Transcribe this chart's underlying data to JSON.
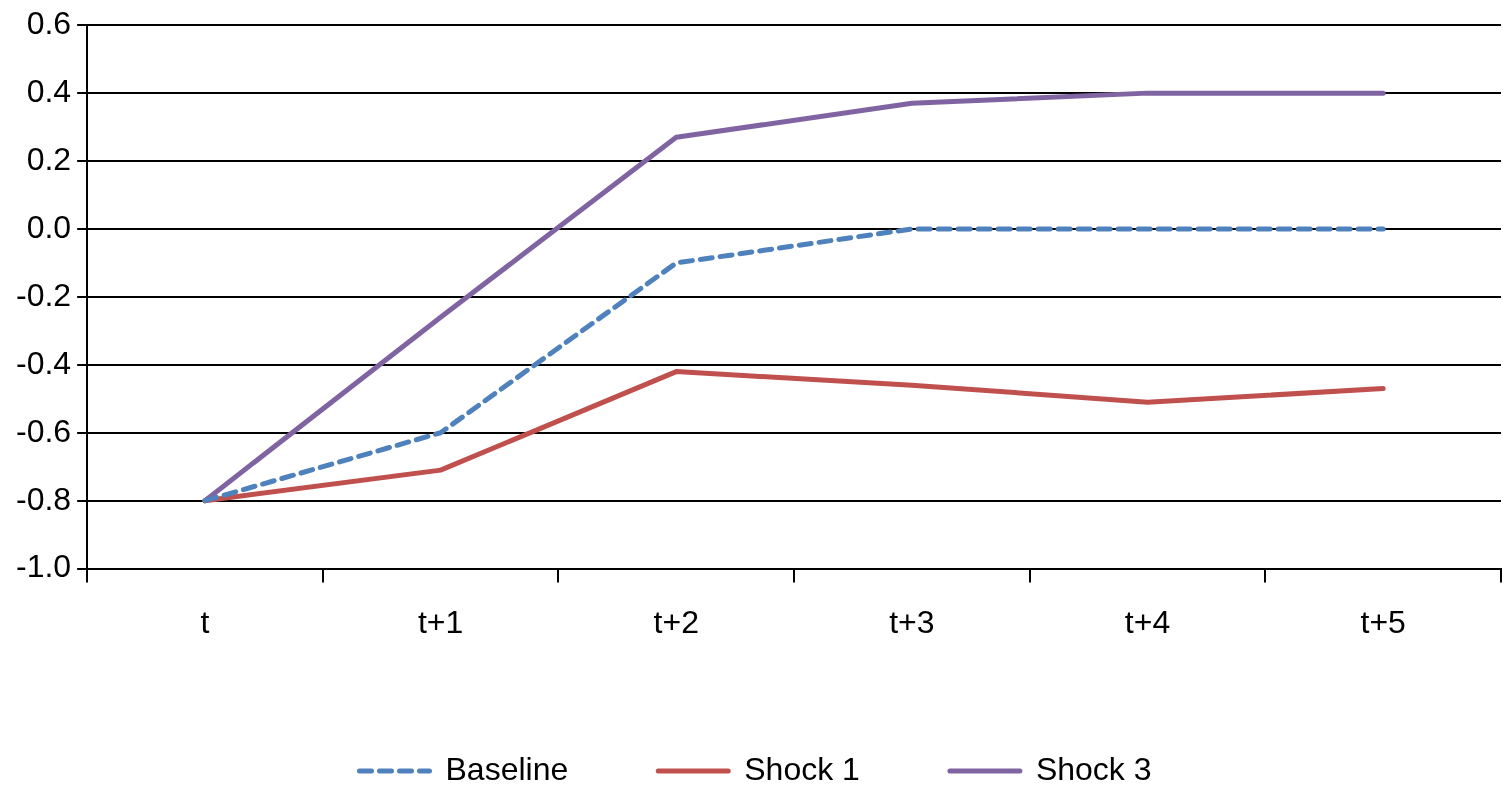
{
  "chart_data": {
    "type": "line",
    "categories": [
      "t",
      "t+1",
      "t+2",
      "t+3",
      "t+4",
      "t+5"
    ],
    "series": [
      {
        "name": "Baseline",
        "color": "#4f81bd",
        "line_style": "dashed",
        "values": [
          -0.8,
          -0.6,
          -0.1,
          0.0,
          0.0,
          0.0
        ]
      },
      {
        "name": "Shock 1",
        "color": "#c0504d",
        "values": [
          -0.8,
          -0.71,
          -0.42,
          -0.46,
          -0.51,
          -0.47
        ]
      },
      {
        "name": "Shock 3",
        "color": "#8064a2",
        "values": [
          -0.8,
          -0.26,
          0.27,
          0.37,
          0.4,
          0.4
        ]
      }
    ],
    "ylim": [
      -1.0,
      0.6
    ],
    "yticks": [
      {
        "value": -1.0,
        "label": "-1.0"
      },
      {
        "value": -0.8,
        "label": "-0.8"
      },
      {
        "value": -0.6,
        "label": "-0.6"
      },
      {
        "value": -0.4,
        "label": "-0.4"
      },
      {
        "value": -0.2,
        "label": "-0.2"
      },
      {
        "value": 0,
        "label": "0.0"
      },
      {
        "value": 0.2,
        "label": "0.2"
      },
      {
        "value": 0.4,
        "label": "0.4"
      },
      {
        "value": 0.6,
        "label": "0.6"
      }
    ],
    "grid": "y",
    "legend": "bottom",
    "marker": "none",
    "line_style": "solid"
  }
}
